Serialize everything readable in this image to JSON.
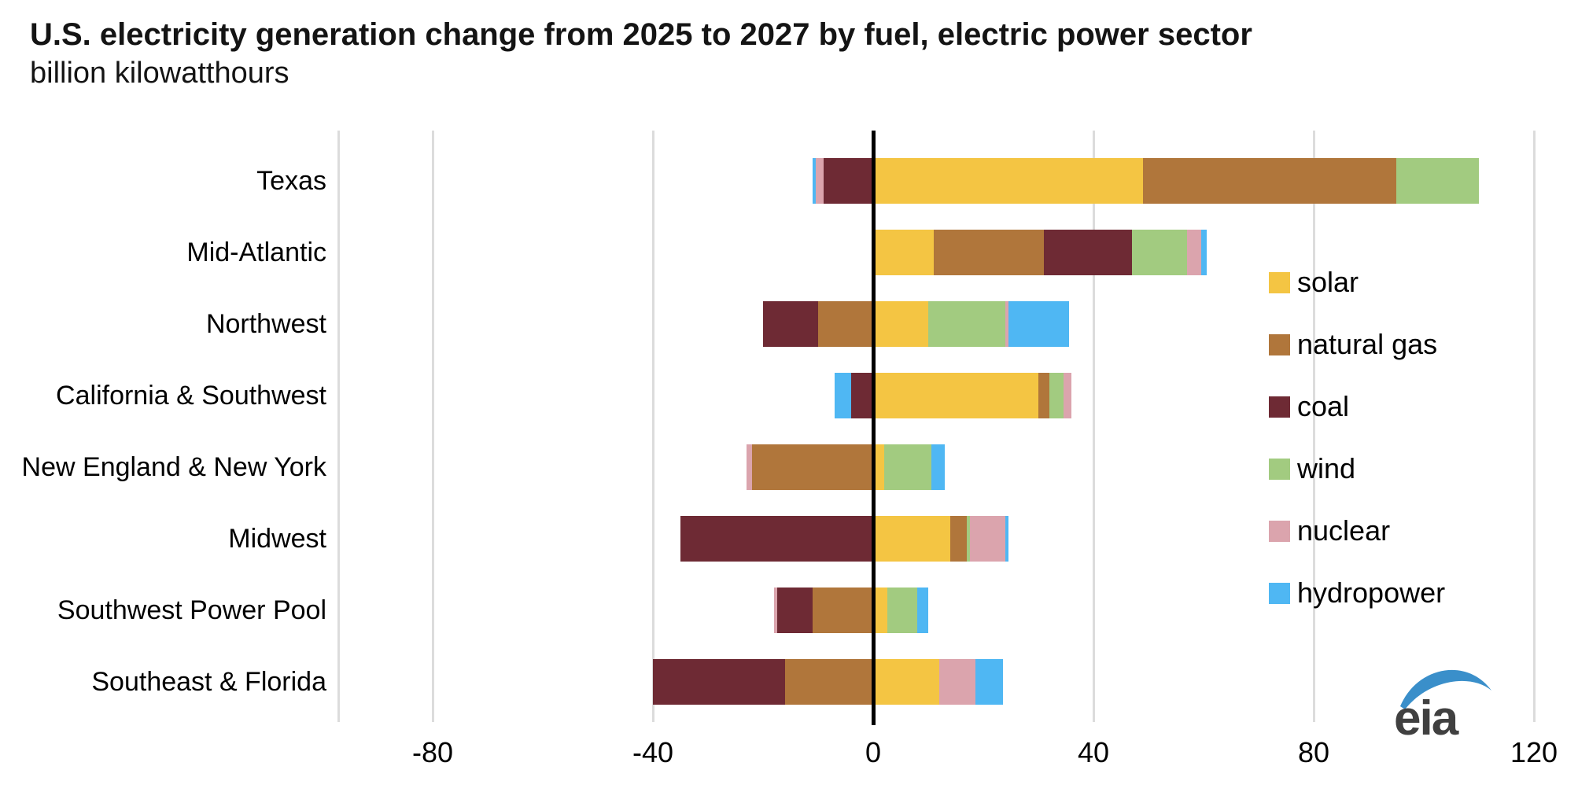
{
  "title": "U.S. electricity generation change from 2025 to 2027 by fuel, electric power sector",
  "subtitle": "billion kilowatthours",
  "logo": {
    "text": "eia",
    "swoosh_color": "#3a8fca",
    "text_color": "#404040"
  },
  "axis": {
    "tick_labels": [
      "-80",
      "-40",
      "0",
      "40",
      "80",
      "120"
    ]
  },
  "chart_data": {
    "type": "bar",
    "orientation": "horizontal",
    "stacked": true,
    "title": "U.S. electricity generation change from 2025 to 2027 by fuel, electric power sector",
    "subtitle": "billion kilowatthours",
    "xlabel": "billion kilowatthours",
    "ylabel": "",
    "xlim": [
      -97,
      128
    ],
    "x_ticks": [
      -80,
      -40,
      0,
      40,
      80,
      120
    ],
    "grid": "vertical",
    "legend_position": "right",
    "zero_line_color": "#000000",
    "gridline_color": "#dcdcdc",
    "categories": [
      "Texas",
      "Mid-Atlantic",
      "Northwest",
      "California & Southwest",
      "New England & New York",
      "Midwest",
      "Southwest Power Pool",
      "Southeast & Florida"
    ],
    "series": [
      {
        "name": "solar",
        "color": "#f4c543",
        "values": [
          49,
          11,
          10,
          30,
          2,
          14,
          2.5,
          12
        ]
      },
      {
        "name": "natural gas",
        "color": "#b0763b",
        "values": [
          46,
          20,
          -10,
          2,
          -22,
          3,
          -11,
          -16
        ]
      },
      {
        "name": "coal",
        "color": "#6e2a34",
        "values": [
          -9,
          16,
          -10,
          -4,
          0,
          -35,
          -6.5,
          -24
        ]
      },
      {
        "name": "wind",
        "color": "#a2cb80",
        "values": [
          15,
          10,
          14,
          2.5,
          8.5,
          0.5,
          5.5,
          0
        ]
      },
      {
        "name": "nuclear",
        "color": "#dba4ad",
        "values": [
          -1.5,
          2.5,
          0.5,
          1.5,
          -1,
          6.5,
          -0.5,
          6.5
        ]
      },
      {
        "name": "hydropower",
        "color": "#4fb7f3",
        "values": [
          -0.5,
          1,
          11,
          -3,
          2.5,
          0.5,
          2,
          5
        ]
      }
    ]
  }
}
